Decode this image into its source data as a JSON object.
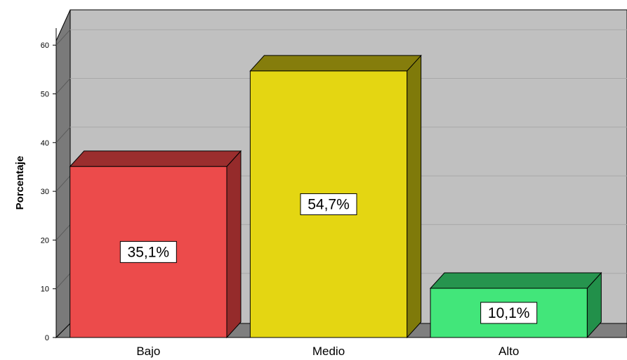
{
  "chart_data": {
    "type": "bar",
    "categories": [
      "Bajo",
      "Medio",
      "Alto"
    ],
    "values": [
      35.1,
      54.7,
      10.1
    ],
    "data_labels": [
      "35,1%",
      "54,7%",
      "10,1%"
    ],
    "ylabel": "Porcentaje",
    "xlabel": "",
    "ylim": [
      0,
      60
    ],
    "yticks": [
      "0",
      "10",
      "20",
      "30",
      "40",
      "50",
      "60"
    ],
    "grid": true,
    "style": "3d",
    "colors": {
      "bars": [
        "#ec4b4b",
        "#e4d612",
        "#42e67a"
      ],
      "bar_sides": [
        "#952b2b",
        "#7f7a0a",
        "#22904a"
      ],
      "bar_tops": [
        "#9b2e2e",
        "#857d0c",
        "#26944e"
      ],
      "plot_back": "#c0c0c0",
      "plot_wall": "#7a7a7a",
      "plot_floor": "#7f7f7f"
    }
  }
}
